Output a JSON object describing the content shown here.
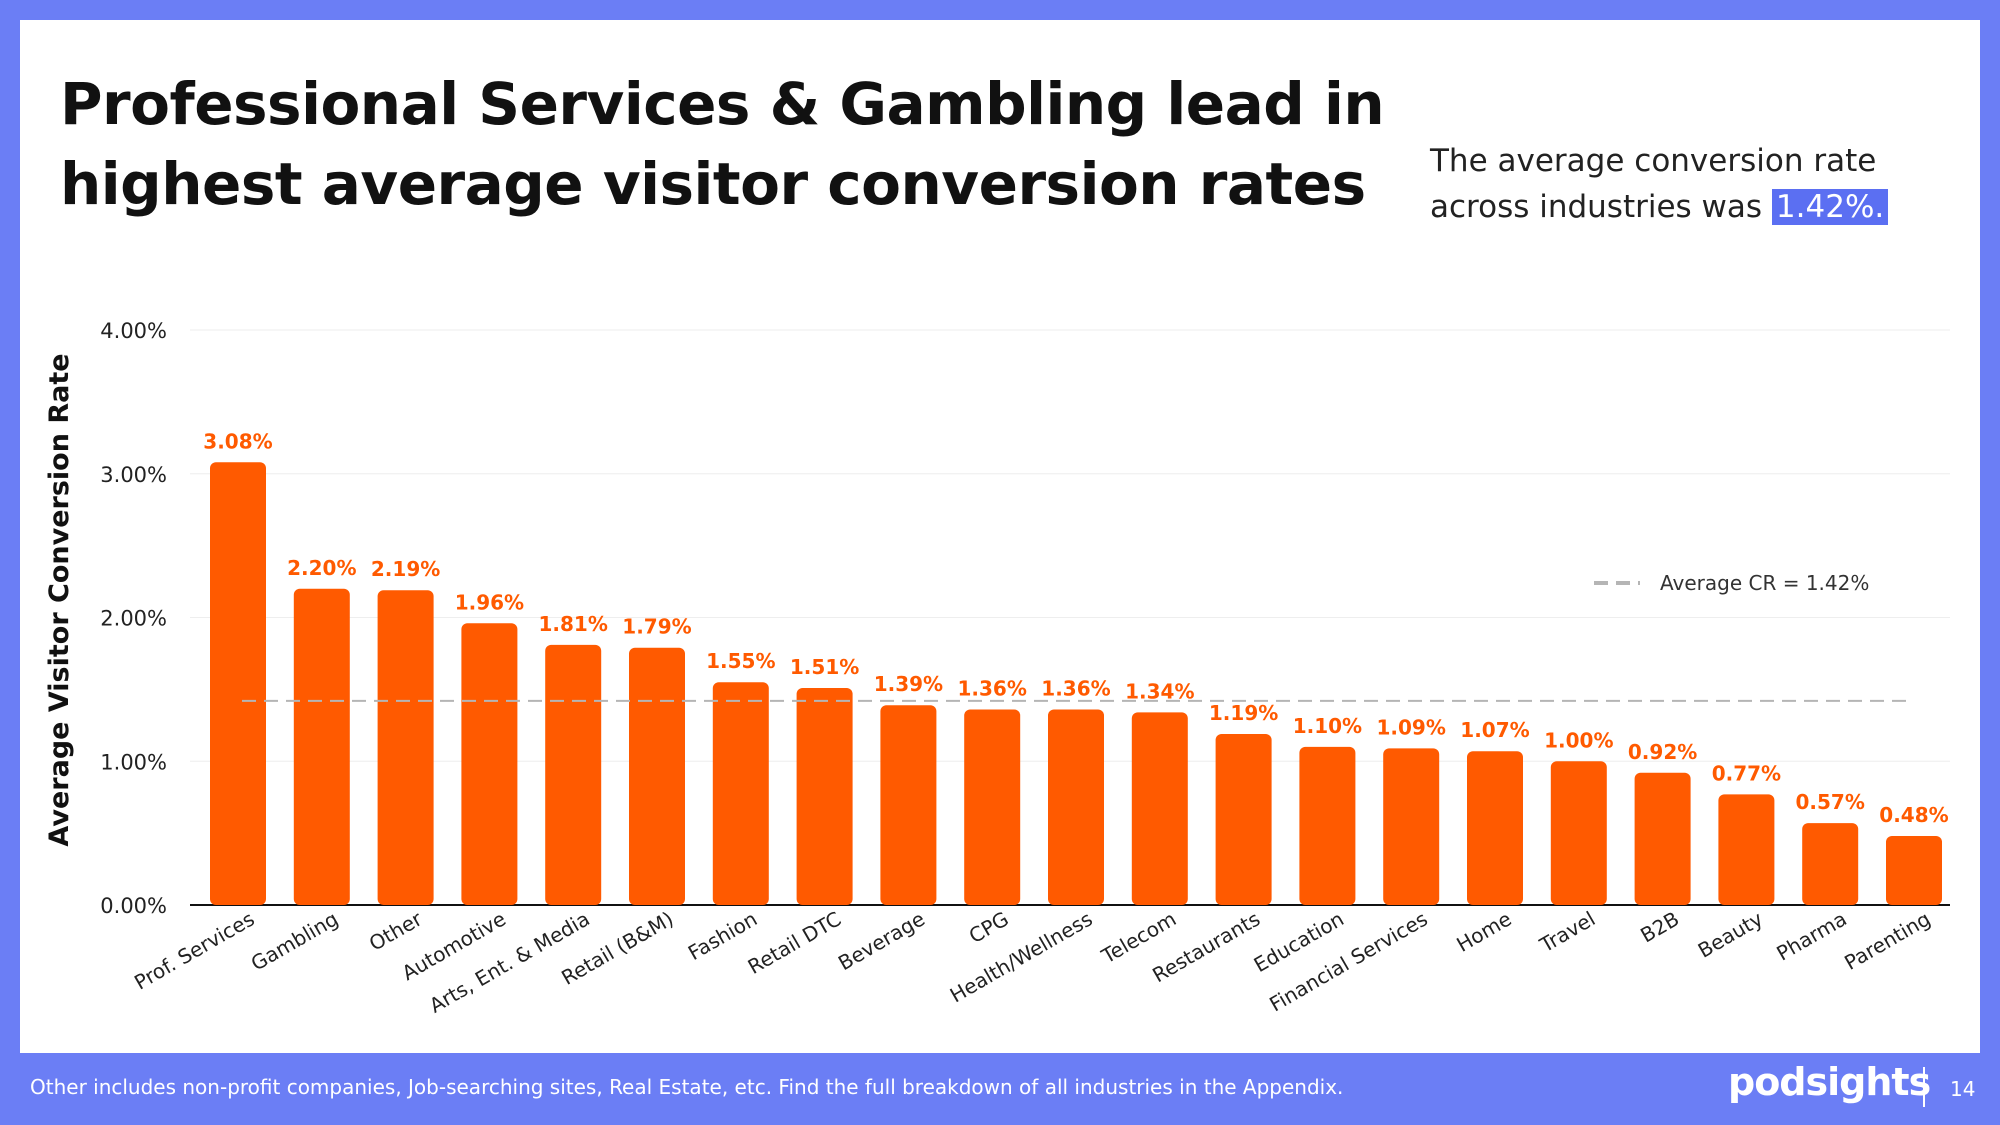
{
  "slide": {
    "title": "Professional Services & Gambling lead in highest average visitor conversion rates",
    "callout_text": "The average conversion rate across industries was",
    "callout_value": "1.42%.",
    "footer_note": "Other includes non-profit companies, Job-searching sites, Real Estate, etc. Find the full breakdown of all industries in the Appendix.",
    "brand": "podsights",
    "page_number": "14"
  },
  "colors": {
    "bar": "#ff5a00",
    "label": "#ff5a00",
    "frame": "#6b7ef5",
    "highlight": "#5b6ff2",
    "average_line": "#b5b5b5"
  },
  "chart_data": {
    "type": "bar",
    "title": "",
    "xlabel": "",
    "ylabel": "Average Visitor Conversion Rate",
    "ylim": [
      0,
      4
    ],
    "yticks": [
      0,
      1,
      2,
      3,
      4
    ],
    "ytick_labels": [
      "0.00%",
      "1.00%",
      "2.00%",
      "3.00%",
      "4.00%"
    ],
    "categories": [
      "Prof. Services",
      "Gambling",
      "Other",
      "Automotive",
      "Arts, Ent. & Media",
      "Retail (B&M)",
      "Fashion",
      "Retail DTC",
      "Beverage",
      "CPG",
      "Health/Wellness",
      "Telecom",
      "Restaurants",
      "Education",
      "Financial Services",
      "Home",
      "Travel",
      "B2B",
      "Beauty",
      "Pharma",
      "Parenting"
    ],
    "values": [
      3.08,
      2.2,
      2.19,
      1.96,
      1.81,
      1.79,
      1.55,
      1.51,
      1.39,
      1.36,
      1.36,
      1.34,
      1.19,
      1.1,
      1.09,
      1.07,
      1.0,
      0.92,
      0.77,
      0.57,
      0.48
    ],
    "data_labels": [
      "3.08%",
      "2.20%",
      "2.19%",
      "1.96%",
      "1.81%",
      "1.79%",
      "1.55%",
      "1.51%",
      "1.39%",
      "1.36%",
      "1.36%",
      "1.34%",
      "1.19%",
      "1.10%",
      "1.09%",
      "1.07%",
      "1.00%",
      "0.92%",
      "0.77%",
      "0.57%",
      "0.48%"
    ],
    "reference_line": {
      "value": 1.42,
      "style": "dashed"
    },
    "legend": {
      "label": "Average CR = 1.42%",
      "position": "top-right"
    },
    "grid": true
  }
}
